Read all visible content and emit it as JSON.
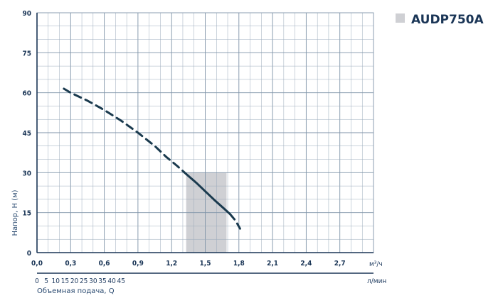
{
  "chart_data": {
    "type": "line",
    "title": "AUDP750A",
    "ylabel": "Напор, H (м)",
    "xlabel": "Объемная подача, Q",
    "x_unit_primary": "м³/ч",
    "x_unit_secondary": "л/мин",
    "ylim": [
      0,
      90
    ],
    "xlim": [
      0,
      3.0
    ],
    "y_ticks": [
      "0",
      "15",
      "30",
      "45",
      "60",
      "75",
      "90"
    ],
    "x_ticks_primary": [
      "0,0",
      "0,3",
      "0,6",
      "0,9",
      "1,2",
      "1,5",
      "1,8",
      "2,1",
      "2,4",
      "2,7"
    ],
    "x_ticks_secondary": [
      "0",
      "5",
      "10",
      "15",
      "20",
      "25",
      "30",
      "35",
      "40",
      "45"
    ],
    "grid": true,
    "legend_position": "top-right",
    "colors": {
      "curve": "#1a3a4e",
      "grid": "#9aaabb",
      "grid_major": "#7f93a8",
      "band": "#cfd0d4",
      "legend_box": "#cfd0d4"
    },
    "series": [
      {
        "name": "AUDP750A",
        "style": "dashed",
        "x": [
          0.24,
          0.3,
          0.45,
          0.6,
          0.75,
          0.9,
          1.05,
          1.15,
          1.25,
          1.33
        ],
        "y": [
          61.5,
          60,
          57,
          53.5,
          49.5,
          45,
          40,
          36,
          32.5,
          29.5
        ]
      },
      {
        "name": "AUDP750A",
        "style": "solid",
        "x": [
          1.33,
          1.42,
          1.5,
          1.58,
          1.66,
          1.72
        ],
        "y": [
          29.5,
          26.2,
          23,
          19.8,
          16.8,
          14.5
        ]
      },
      {
        "name": "AUDP750A",
        "style": "dashed",
        "x": [
          1.72,
          1.77,
          1.81
        ],
        "y": [
          14.5,
          12,
          9
        ]
      }
    ],
    "operating_band": {
      "x_min": 1.33,
      "x_max": 1.69
    }
  }
}
